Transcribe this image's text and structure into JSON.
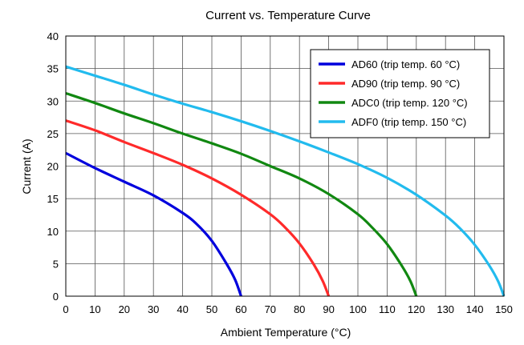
{
  "chart_data": {
    "type": "line",
    "title": "Current vs. Temperature Curve",
    "xlabel": "Ambient Temperature (°C)",
    "ylabel": "Current (A)",
    "xlim": [
      0,
      150
    ],
    "ylim": [
      0,
      40
    ],
    "xticks": [
      "0",
      "10",
      "20",
      "30",
      "40",
      "50",
      "60",
      "70",
      "80",
      "90",
      "100",
      "110",
      "120",
      "130",
      "140",
      "150"
    ],
    "yticks": [
      "0",
      "5",
      "10",
      "15",
      "20",
      "25",
      "30",
      "35",
      "40"
    ],
    "grid": true,
    "legend_position": "top-right",
    "series": [
      {
        "name": "AD60 (trip temp. 60 °C)",
        "color": "#0000dd",
        "x": [
          0,
          10,
          20,
          30,
          40,
          45,
          50,
          55,
          58,
          60
        ],
        "y": [
          22.0,
          19.7,
          17.6,
          15.5,
          12.8,
          11.0,
          8.5,
          5.0,
          2.5,
          0
        ]
      },
      {
        "name": "AD90 (trip temp. 90 °C)",
        "color": "#ff2a2a",
        "x": [
          0,
          10,
          20,
          30,
          40,
          50,
          60,
          70,
          75,
          80,
          85,
          88,
          90
        ],
        "y": [
          27.0,
          25.5,
          23.7,
          22.0,
          20.2,
          18.1,
          15.6,
          12.6,
          10.6,
          8.1,
          4.8,
          2.3,
          0
        ]
      },
      {
        "name": "ADC0 (trip temp. 120 °C)",
        "color": "#118811",
        "x": [
          0,
          10,
          20,
          30,
          40,
          50,
          60,
          70,
          80,
          90,
          100,
          105,
          110,
          115,
          118,
          120
        ],
        "y": [
          31.2,
          29.7,
          28.1,
          26.6,
          25.0,
          23.5,
          21.9,
          20.0,
          18.1,
          15.7,
          12.6,
          10.5,
          8.0,
          4.7,
          2.3,
          0
        ]
      },
      {
        "name": "ADF0 (trip temp. 150 °C)",
        "color": "#22bbee",
        "x": [
          0,
          10,
          20,
          30,
          40,
          50,
          60,
          70,
          80,
          90,
          100,
          110,
          120,
          130,
          135,
          140,
          145,
          148,
          150
        ],
        "y": [
          35.3,
          33.9,
          32.5,
          31.0,
          29.6,
          28.3,
          26.9,
          25.4,
          23.8,
          22.1,
          20.3,
          18.2,
          15.6,
          12.4,
          10.4,
          7.9,
          4.7,
          2.3,
          0
        ]
      }
    ]
  }
}
